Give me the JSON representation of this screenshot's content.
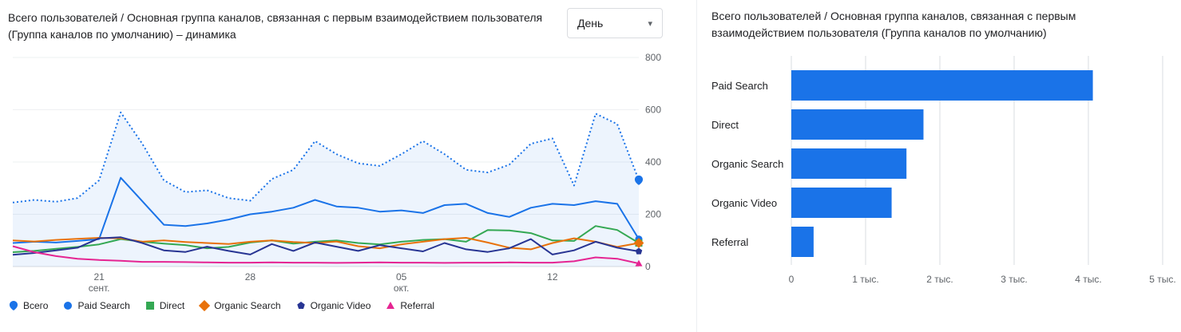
{
  "left_chart": {
    "title": "Всего пользователей / Основная группа каналов, связанная с первым взаимодействием пользователя (Группа каналов по умолчанию) – динамика",
    "granularity_label": "День"
  },
  "right_chart": {
    "title": "Всего пользователей / Основная группа каналов, связанная с первым взаимодействием пользователя (Группа каналов по умолчанию)"
  },
  "colors": {
    "accent_blue": "#1a73e8",
    "axis_label": "#5f6368",
    "gridline": "#e8eaed",
    "axis_line": "#dadce0"
  },
  "chart_data": [
    {
      "type": "line",
      "title": "Всего пользователей / Основная группа каналов, связанная с первым взаимодействием пользователя (Группа каналов по умолчанию) – динамика",
      "granularity": "День",
      "ylim": [
        0,
        800
      ],
      "yticks": [
        0,
        200,
        400,
        600,
        800
      ],
      "xticks": [
        {
          "i": 4,
          "line1": "21",
          "line2": "сент."
        },
        {
          "i": 11,
          "line1": "28",
          "line2": ""
        },
        {
          "i": 18,
          "line1": "05",
          "line2": "окт."
        },
        {
          "i": 25,
          "line1": "12",
          "line2": ""
        }
      ],
      "grid": true,
      "legend_position": "bottom",
      "series": [
        {
          "name": "Всего",
          "color": "#1a73e8",
          "style": "dotted",
          "fill": true,
          "marker": "spade",
          "values": [
            245,
            255,
            248,
            262,
            330,
            590,
            470,
            330,
            285,
            292,
            262,
            252,
            335,
            370,
            480,
            430,
            395,
            385,
            430,
            480,
            430,
            370,
            360,
            390,
            470,
            490,
            310,
            585,
            545,
            330
          ]
        },
        {
          "name": "Paid Search",
          "color": "#1a73e8",
          "style": "solid",
          "fill": false,
          "marker": "circle",
          "values": [
            90,
            95,
            92,
            98,
            105,
            340,
            250,
            160,
            155,
            165,
            180,
            200,
            210,
            225,
            255,
            230,
            225,
            210,
            215,
            205,
            235,
            240,
            205,
            190,
            225,
            240,
            235,
            250,
            240,
            105
          ]
        },
        {
          "name": "Direct",
          "color": "#34a853",
          "style": "solid",
          "fill": false,
          "marker": "square",
          "values": [
            55,
            60,
            68,
            75,
            85,
            105,
            95,
            88,
            82,
            70,
            75,
            92,
            100,
            88,
            95,
            100,
            90,
            85,
            95,
            102,
            105,
            95,
            140,
            138,
            128,
            100,
            98,
            155,
            140,
            90
          ]
        },
        {
          "name": "Organic Search",
          "color": "#e8710a",
          "style": "solid",
          "fill": false,
          "marker": "diamond",
          "values": [
            100,
            96,
            102,
            106,
            110,
            108,
            95,
            100,
            94,
            90,
            86,
            95,
            100,
            94,
            90,
            96,
            78,
            70,
            85,
            95,
            105,
            110,
            92,
            72,
            66,
            90,
            108,
            95,
            75,
            90
          ]
        },
        {
          "name": "Organic Video",
          "color": "#283593",
          "style": "solid",
          "fill": false,
          "marker": "pentagon",
          "values": [
            45,
            52,
            62,
            72,
            108,
            112,
            90,
            62,
            56,
            76,
            60,
            46,
            86,
            60,
            92,
            76,
            60,
            82,
            70,
            58,
            90,
            66,
            56,
            70,
            105,
            46,
            62,
            95,
            72,
            58
          ]
        },
        {
          "name": "Referral",
          "color": "#e52592",
          "style": "solid",
          "fill": false,
          "marker": "triangle",
          "values": [
            78,
            55,
            40,
            30,
            25,
            22,
            18,
            18,
            17,
            16,
            15,
            15,
            16,
            15,
            15,
            14,
            15,
            16,
            15,
            15,
            14,
            15,
            15,
            16,
            15,
            15,
            20,
            35,
            30,
            12
          ]
        }
      ]
    },
    {
      "type": "bar",
      "orientation": "horizontal",
      "title": "Всего пользователей / Основная группа каналов, связанная с первым взаимодействием пользователя (Группа каналов по умолчанию)",
      "categories": [
        "Paid Search",
        "Direct",
        "Organic Search",
        "Organic Video",
        "Referral"
      ],
      "values": [
        4060,
        1780,
        1550,
        1350,
        300
      ],
      "bar_color": "#1a73e8",
      "xlim": [
        0,
        5000
      ],
      "xticks": [
        0,
        1000,
        2000,
        3000,
        4000,
        5000
      ],
      "xtick_labels": [
        "0",
        "1 тыс.",
        "2 тыс.",
        "3 тыс.",
        "4 тыс.",
        "5 тыс."
      ],
      "grid": true,
      "legend_position": "none"
    }
  ]
}
